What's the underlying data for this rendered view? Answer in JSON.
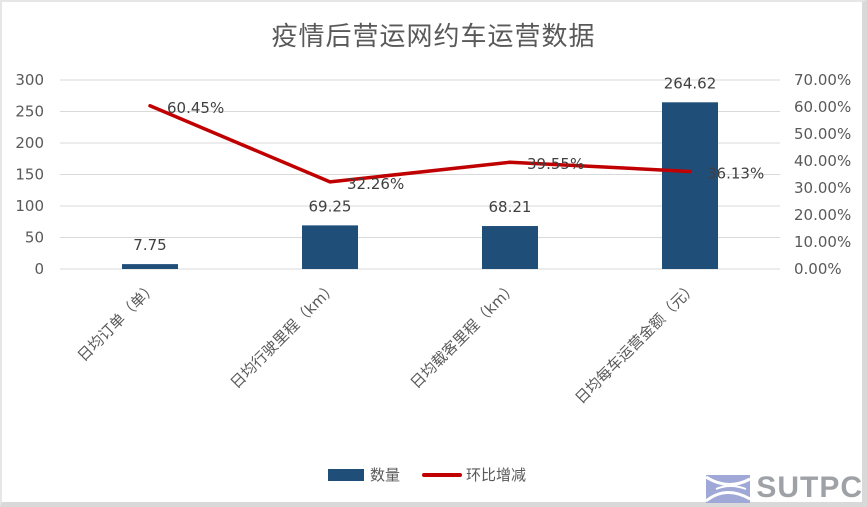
{
  "chart_data": {
    "type": "bar+line",
    "title": "疫情后营运网约车运营数据",
    "categories": [
      "日均订单（单）",
      "日均行驶里程（km）",
      "日均载客里程（km）",
      "日均每车运营金额（元）"
    ],
    "series": [
      {
        "name": "数量",
        "type": "bar",
        "axis": "left",
        "color": "#1f4e79",
        "values": [
          7.75,
          69.25,
          68.21,
          264.62
        ],
        "labels": [
          "7.75",
          "69.25",
          "68.21",
          "264.62"
        ]
      },
      {
        "name": "环比增减",
        "type": "line",
        "axis": "right",
        "color": "#c00000",
        "values": [
          60.45,
          32.26,
          39.55,
          36.13
        ],
        "labels": [
          "60.45%",
          "32.26%",
          "39.55%",
          "36.13%"
        ]
      }
    ],
    "left_axis": {
      "ylim": [
        0,
        300
      ],
      "ticks": [
        "0",
        "50",
        "100",
        "150",
        "200",
        "250",
        "300"
      ]
    },
    "right_axis": {
      "ylim": [
        0,
        70
      ],
      "ticks": [
        "0.00%",
        "10.00%",
        "20.00%",
        "30.00%",
        "40.00%",
        "50.00%",
        "60.00%",
        "70.00%"
      ]
    },
    "grid": true,
    "legend_position": "bottom",
    "xlabel": "",
    "ylabel": ""
  },
  "legend": {
    "bar_label": "数量",
    "line_label": "环比增减"
  },
  "watermark": {
    "text": "SUTPC"
  }
}
